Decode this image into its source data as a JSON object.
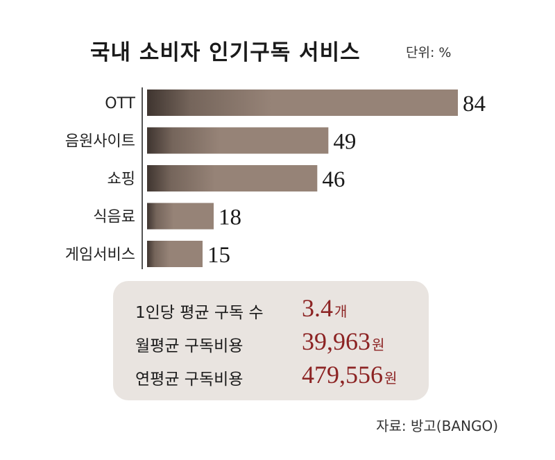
{
  "chart_data": {
    "type": "bar",
    "orientation": "horizontal",
    "title": "국내 소비자 인기구독 서비스",
    "unit": "단위: %",
    "categories": [
      "OTT",
      "음원사이트",
      "쇼핑",
      "식음료",
      "게임서비스"
    ],
    "values": [
      84,
      49,
      46,
      18,
      15
    ],
    "data_labels": [
      "84",
      "49",
      "46",
      "18",
      "15"
    ],
    "xlim": [
      0,
      84
    ],
    "grid": false,
    "legend": "none",
    "bar_color_dark": "#3f3530",
    "bar_color_light": "#968377"
  },
  "summary": {
    "rows": [
      {
        "label": "1인당 평균 구독 수",
        "value": "3.4",
        "suffix": "개"
      },
      {
        "label": "월평균 구독비용",
        "value": "39,963",
        "suffix": "원"
      },
      {
        "label": "연평균 구독비용",
        "value": "479,556",
        "suffix": "원"
      }
    ],
    "value_color": "#8c2323",
    "box_color": "#e9e4e0"
  },
  "source": "자료: 방고(BANGO)"
}
